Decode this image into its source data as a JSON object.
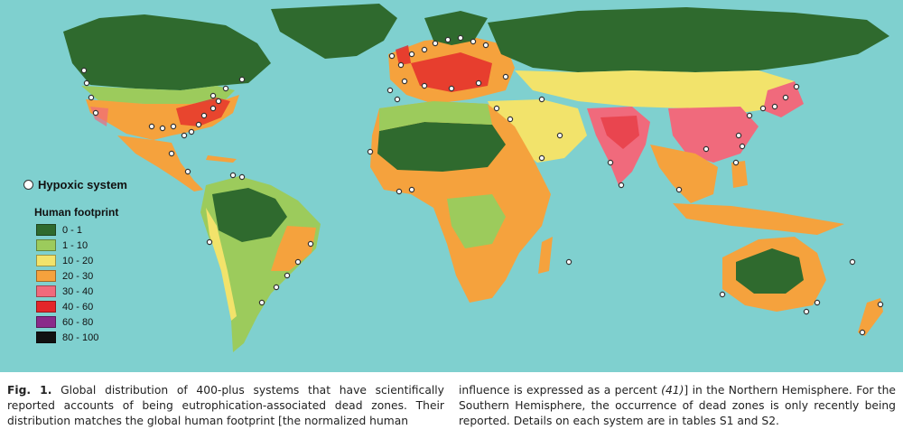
{
  "legend": {
    "marker_label": "Hypoxic system",
    "title": "Human footprint",
    "items": [
      {
        "label": "0 - 1",
        "color": "#2f6a2e"
      },
      {
        "label": "1 - 10",
        "color": "#9ccb5c"
      },
      {
        "label": "10 - 20",
        "color": "#f2e36b"
      },
      {
        "label": "20 - 30",
        "color": "#f5a23d"
      },
      {
        "label": "30 - 40",
        "color": "#f06a7c"
      },
      {
        "label": "40 - 60",
        "color": "#e3262a"
      },
      {
        "label": "60 - 80",
        "color": "#8a2a8a"
      },
      {
        "label": "80 - 100",
        "color": "#111111"
      }
    ]
  },
  "colors": {
    "ocean": "#7fd0cf",
    "boreal": "#2f6a2e",
    "light_green": "#9ccb5c",
    "yellow": "#f2e36b",
    "orange": "#f5a23d",
    "pink": "#f06a7c",
    "red": "#e3262a",
    "purple": "#8a2a8a"
  },
  "caption": {
    "fig_label": "Fig. 1.",
    "left_text": "Global distribution of 400-plus systems that have scientifically reported accounts of being eutrophication-associated dead zones. Their distribution matches the global human footprint [the normalized human",
    "right_pre": "influence is expressed as a percent",
    "right_ref": "(41)",
    "right_post": "] in the Northern Hemisphere. For the Southern Hemisphere, the occurrence of dead zones is only recently being reported. Details on each system are in tables S1 and S2."
  }
}
